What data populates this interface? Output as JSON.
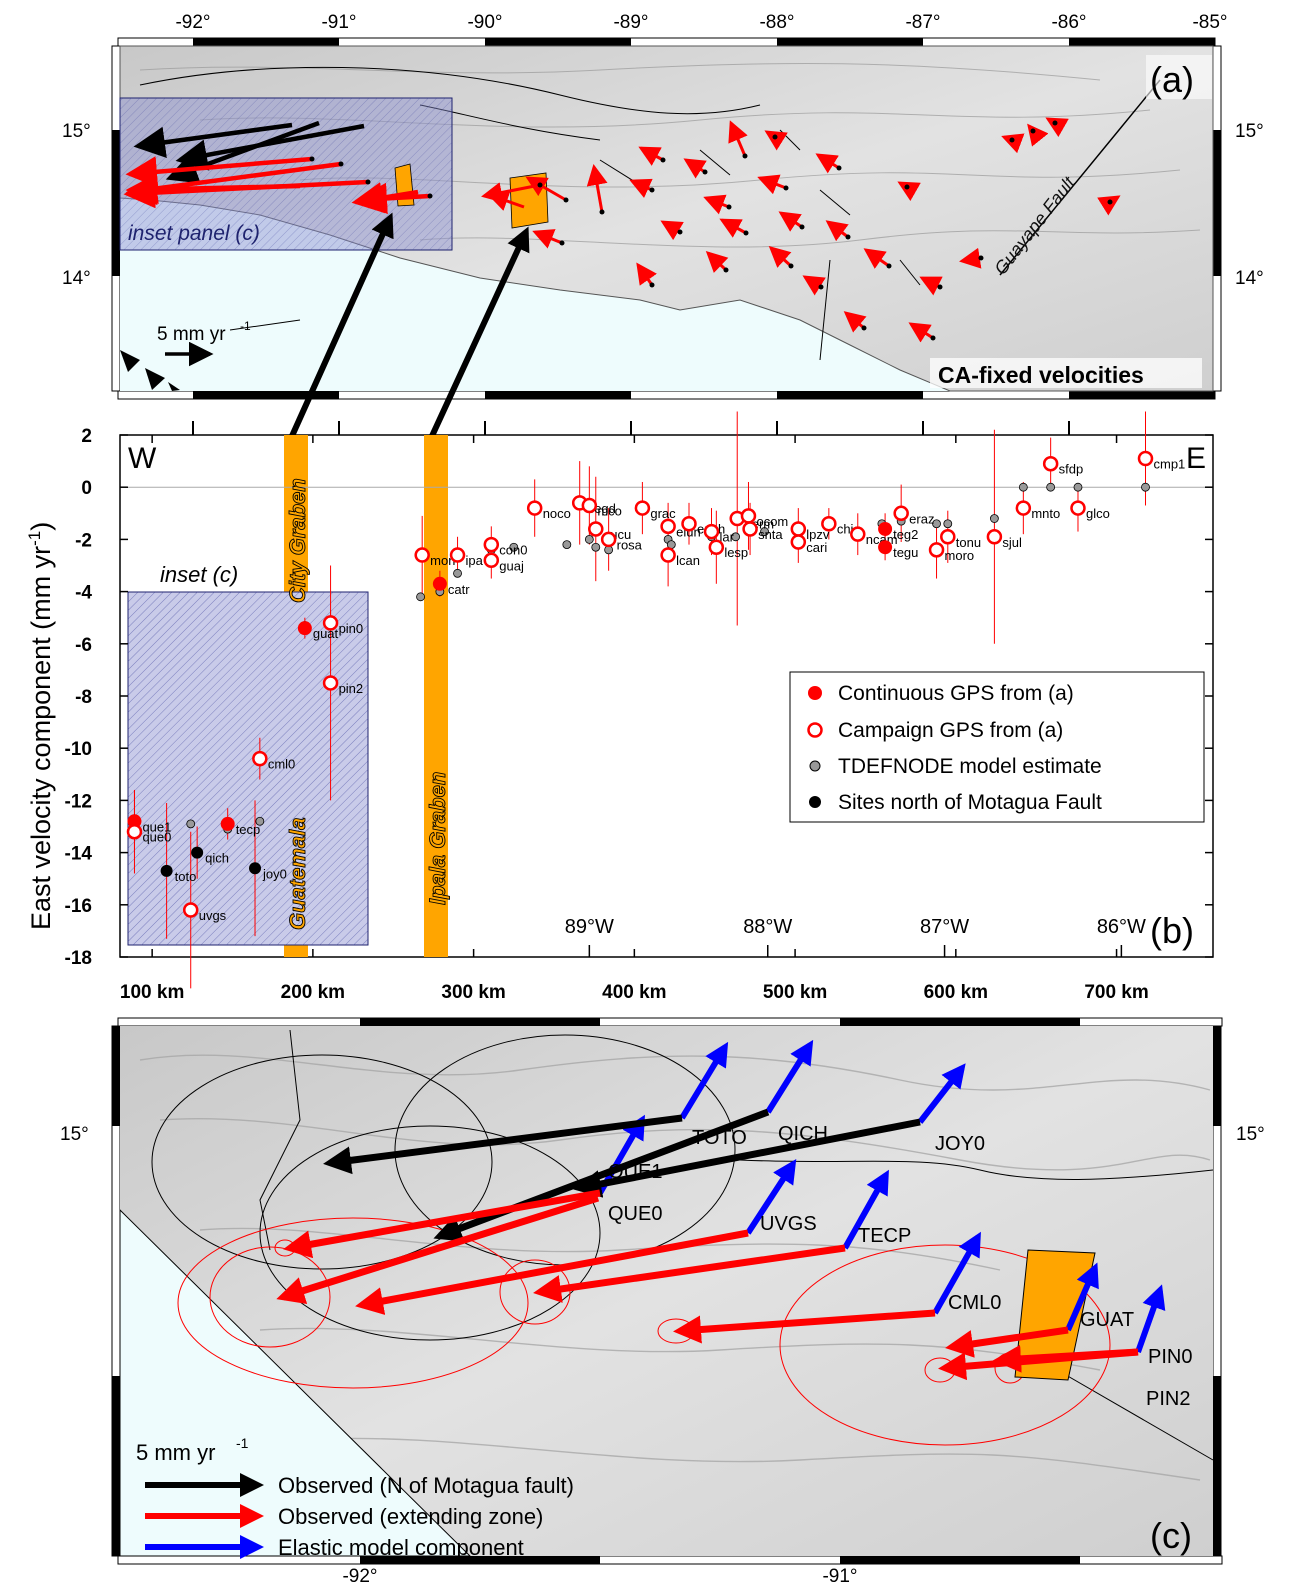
{
  "panel_a": {
    "label": "(a)",
    "title": "CA-fixed velocities",
    "lon_ticks": [
      "-92°",
      "-91°",
      "-90°",
      "-89°",
      "-88°",
      "-87°",
      "-86°",
      "-85°"
    ],
    "lat_ticks": [
      "15°",
      "14°"
    ],
    "fault_label": "Guayape Fault",
    "inset_label": "inset panel (c)",
    "scale_label": "5 mm yr",
    "scale_unit_exp": "-1",
    "colors": {
      "sea": "#eefcfd",
      "land": "#d6d6d6",
      "vector": "#ff0000",
      "north_vector": "#000000",
      "graben": "#ffa500",
      "inset_box": "#8a8fd0"
    }
  },
  "panel_b": {
    "label": "(b)",
    "west_label": "W",
    "east_label": "E",
    "ylabel": "East velocity component (mm yr",
    "ylabel_exp": "-1",
    "ylabel_close": ")",
    "inset_label": "inset (c)",
    "graben_labels": {
      "city_top": "City Graben",
      "city_bottom": "Guatemala",
      "ipala": "Ipala Graben"
    },
    "legend": [
      {
        "label": "Continuous GPS from (a)",
        "style": "filled-red"
      },
      {
        "label": "Campaign GPS from (a)",
        "style": "open-red"
      },
      {
        "label": "TDEFNODE model estimate",
        "style": "gray"
      },
      {
        "label": "Sites north of Motagua Fault",
        "style": "black"
      }
    ]
  },
  "chart_data": {
    "type": "scatter",
    "xlabel": "",
    "ylabel": "East velocity component (mm yr-1)",
    "ylim": [
      -18,
      2
    ],
    "xlim": [
      80,
      760
    ],
    "x_ticks": [
      "100 km",
      "200 km",
      "300 km",
      "400 km",
      "500 km",
      "600 km",
      "700 km"
    ],
    "x_tick_values": [
      100,
      200,
      300,
      400,
      500,
      600,
      700
    ],
    "y_ticks": [
      2,
      0,
      -2,
      -4,
      -6,
      -8,
      -10,
      -12,
      -14,
      -16,
      -18
    ],
    "lon_labels": [
      {
        "label": "89°W",
        "x": 372
      },
      {
        "label": "88°W",
        "x": 483
      },
      {
        "label": "87°W",
        "x": 593
      },
      {
        "label": "86°W",
        "x": 703
      }
    ],
    "observed": [
      {
        "site": "que1",
        "x": 89,
        "y": -12.8,
        "err": 1.2,
        "kind": "continuous"
      },
      {
        "site": "que0",
        "x": 89,
        "y": -13.2,
        "err": 1.6,
        "kind": "campaign"
      },
      {
        "site": "toto",
        "x": 109,
        "y": -14.7,
        "err": 2.6,
        "kind": "north"
      },
      {
        "site": "qich",
        "x": 128,
        "y": -14.0,
        "err": 1.0,
        "kind": "north"
      },
      {
        "site": "uvgs",
        "x": 124,
        "y": -16.2,
        "err": 3.0,
        "kind": "campaign"
      },
      {
        "site": "tecp",
        "x": 147,
        "y": -12.9,
        "err": 0.6,
        "kind": "continuous"
      },
      {
        "site": "joy0",
        "x": 164,
        "y": -14.6,
        "err": 2.6,
        "kind": "north"
      },
      {
        "site": "cml0",
        "x": 167,
        "y": -10.4,
        "err": 0.8,
        "kind": "campaign"
      },
      {
        "site": "guat",
        "x": 195,
        "y": -5.4,
        "err": 0.4,
        "kind": "continuous"
      },
      {
        "site": "pin0",
        "x": 211,
        "y": -5.2,
        "err": 0.5,
        "kind": "campaign"
      },
      {
        "site": "pin2",
        "x": 211,
        "y": -7.5,
        "err": 4.5,
        "kind": "campaign"
      },
      {
        "site": "mori",
        "x": 268,
        "y": -2.6,
        "err": 1.5,
        "kind": "campaign"
      },
      {
        "site": "catr",
        "x": 279,
        "y": -3.7,
        "err": 0.5,
        "kind": "continuous"
      },
      {
        "site": "ipa",
        "x": 290,
        "y": -2.6,
        "err": 0.7,
        "kind": "campaign"
      },
      {
        "site": "guaj",
        "x": 311,
        "y": -2.8,
        "err": 0.7,
        "kind": "campaign"
      },
      {
        "site": "con0",
        "x": 311,
        "y": -2.2,
        "err": 0.7,
        "kind": "campaign"
      },
      {
        "site": "noco",
        "x": 338,
        "y": -0.8,
        "err": 1.1,
        "kind": "campaign"
      },
      {
        "site": "cegd",
        "x": 366,
        "y": -0.6,
        "err": 1.6,
        "kind": "campaign"
      },
      {
        "site": "mco",
        "x": 372,
        "y": -0.7,
        "err": 1.5,
        "kind": "campaign"
      },
      {
        "site": "cucu",
        "x": 376,
        "y": -1.6,
        "err": 2.0,
        "kind": "campaign"
      },
      {
        "site": "rosa",
        "x": 384,
        "y": -2.0,
        "err": 1.2,
        "kind": "campaign"
      },
      {
        "site": "grac",
        "x": 405,
        "y": -0.8,
        "err": 1.0,
        "kind": "campaign"
      },
      {
        "site": "lcan",
        "x": 421,
        "y": -2.6,
        "err": 1.2,
        "kind": "campaign"
      },
      {
        "site": "elun",
        "x": 421,
        "y": -1.5,
        "err": 0.9,
        "kind": "campaign"
      },
      {
        "site": "ench",
        "x": 434,
        "y": -1.4,
        "err": 0.8,
        "kind": "campaign"
      },
      {
        "site": "lar",
        "x": 448,
        "y": -1.7,
        "err": 0.9,
        "kind": "campaign"
      },
      {
        "site": "lesp",
        "x": 451,
        "y": -2.3,
        "err": 1.4,
        "kind": "campaign"
      },
      {
        "site": "cerm",
        "x": 464,
        "y": -1.2,
        "err": 4.1,
        "kind": "campaign"
      },
      {
        "site": "ocom",
        "x": 471,
        "y": -1.1,
        "err": 1.3,
        "kind": "campaign"
      },
      {
        "site": "snta",
        "x": 472,
        "y": -1.6,
        "err": 1.0,
        "kind": "campaign"
      },
      {
        "site": "lpzv",
        "x": 502,
        "y": -1.6,
        "err": 0.8,
        "kind": "campaign"
      },
      {
        "site": "cari",
        "x": 502,
        "y": -2.1,
        "err": 0.8,
        "kind": "campaign"
      },
      {
        "site": "chiq",
        "x": 521,
        "y": -1.4,
        "err": 0.6,
        "kind": "campaign"
      },
      {
        "site": "ncam",
        "x": 539,
        "y": -1.8,
        "err": 0.8,
        "kind": "campaign"
      },
      {
        "site": "teg2",
        "x": 556,
        "y": -1.6,
        "err": 0.6,
        "kind": "continuous"
      },
      {
        "site": "tegu",
        "x": 556,
        "y": -2.3,
        "err": 0.5,
        "kind": "continuous"
      },
      {
        "site": "eraz",
        "x": 566,
        "y": -1.0,
        "err": 1.1,
        "kind": "campaign"
      },
      {
        "site": "moro",
        "x": 588,
        "y": -2.4,
        "err": 1.1,
        "kind": "campaign"
      },
      {
        "site": "tonu",
        "x": 595,
        "y": -1.9,
        "err": 1.0,
        "kind": "campaign"
      },
      {
        "site": "sjul",
        "x": 624,
        "y": -1.9,
        "err": 4.1,
        "kind": "campaign"
      },
      {
        "site": "mnto",
        "x": 642,
        "y": -0.8,
        "err": 1.0,
        "kind": "campaign"
      },
      {
        "site": "sfdp",
        "x": 659,
        "y": 0.9,
        "err": 1.0,
        "kind": "campaign"
      },
      {
        "site": "glco",
        "x": 676,
        "y": -0.8,
        "err": 0.9,
        "kind": "campaign"
      },
      {
        "site": "cmp1",
        "x": 718,
        "y": 1.1,
        "err": 1.8,
        "kind": "campaign"
      }
    ],
    "model": [
      {
        "x": 89,
        "y": -12.7
      },
      {
        "x": 124,
        "y": -12.9
      },
      {
        "x": 147,
        "y": -13.1
      },
      {
        "x": 167,
        "y": -12.8
      },
      {
        "x": 195,
        "y": -5.3
      },
      {
        "x": 211,
        "y": -5.2
      },
      {
        "x": 267,
        "y": -4.2
      },
      {
        "x": 279,
        "y": -4.0
      },
      {
        "x": 290,
        "y": -3.3
      },
      {
        "x": 311,
        "y": -2.4
      },
      {
        "x": 325,
        "y": -2.3
      },
      {
        "x": 358,
        "y": -2.2
      },
      {
        "x": 372,
        "y": -2.0
      },
      {
        "x": 376,
        "y": -2.3
      },
      {
        "x": 384,
        "y": -2.4
      },
      {
        "x": 421,
        "y": -2.0
      },
      {
        "x": 423,
        "y": -2.2
      },
      {
        "x": 448,
        "y": -1.9
      },
      {
        "x": 463,
        "y": -1.9
      },
      {
        "x": 481,
        "y": -1.7
      },
      {
        "x": 502,
        "y": -1.5
      },
      {
        "x": 521,
        "y": -1.5
      },
      {
        "x": 554,
        "y": -1.4
      },
      {
        "x": 566,
        "y": -1.3
      },
      {
        "x": 588,
        "y": -1.4
      },
      {
        "x": 595,
        "y": -1.4
      },
      {
        "x": 624,
        "y": -1.2
      },
      {
        "x": 642,
        "y": 0.0
      },
      {
        "x": 659,
        "y": 0.0
      },
      {
        "x": 676,
        "y": 0.0
      },
      {
        "x": 718,
        "y": 0.0
      }
    ]
  },
  "panel_c": {
    "label": "(c)",
    "lon_ticks": [
      "-92°",
      "-91°"
    ],
    "lat_ticks": [
      "15°"
    ],
    "site_labels": [
      "TOTO",
      "QICH",
      "JOY0",
      "QUE1",
      "QUE0",
      "UVGS",
      "TECP",
      "CML0",
      "GUAT",
      "PIN0",
      "PIN2"
    ],
    "legend_scale": "5 mm yr",
    "legend_scale_exp": "-1",
    "legend": [
      {
        "label": "Observed (N of Motagua fault)",
        "color": "#000000"
      },
      {
        "label": "Observed (extending zone)",
        "color": "#ff0000"
      },
      {
        "label": "Elastic model component",
        "color": "#0000ff"
      }
    ]
  }
}
